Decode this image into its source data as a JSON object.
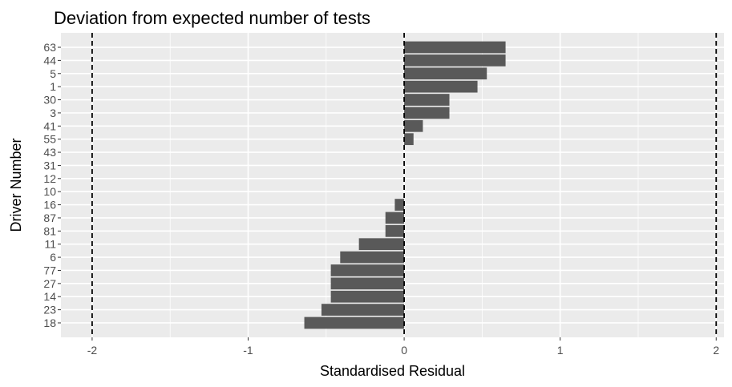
{
  "chart_data": {
    "type": "bar",
    "orientation": "horizontal",
    "title": "Deviation from expected number of tests",
    "xlabel": "Standardised Residual",
    "ylabel": "Driver Number",
    "categories": [
      "18",
      "23",
      "14",
      "27",
      "77",
      "6",
      "11",
      "81",
      "87",
      "16",
      "10",
      "12",
      "31",
      "43",
      "55",
      "41",
      "3",
      "30",
      "1",
      "5",
      "44",
      "63"
    ],
    "values": [
      -0.64,
      -0.53,
      -0.47,
      -0.47,
      -0.47,
      -0.41,
      -0.29,
      -0.12,
      -0.12,
      -0.06,
      0.0,
      0.0,
      0.0,
      0.0,
      0.06,
      0.12,
      0.29,
      0.29,
      0.47,
      0.53,
      0.65,
      0.65
    ],
    "xticks": [
      -2,
      -1,
      0,
      1,
      2
    ],
    "xtick_labels": [
      "-2",
      "-1",
      "0",
      "1",
      "2"
    ],
    "xlim": [
      -2.2,
      2.05
    ],
    "reference_lines": [
      -2,
      0,
      2
    ],
    "grid": true,
    "colors": {
      "bar": "#595959",
      "panel": "#ebebeb",
      "grid": "#ffffff",
      "reference_line": "#000000"
    }
  }
}
